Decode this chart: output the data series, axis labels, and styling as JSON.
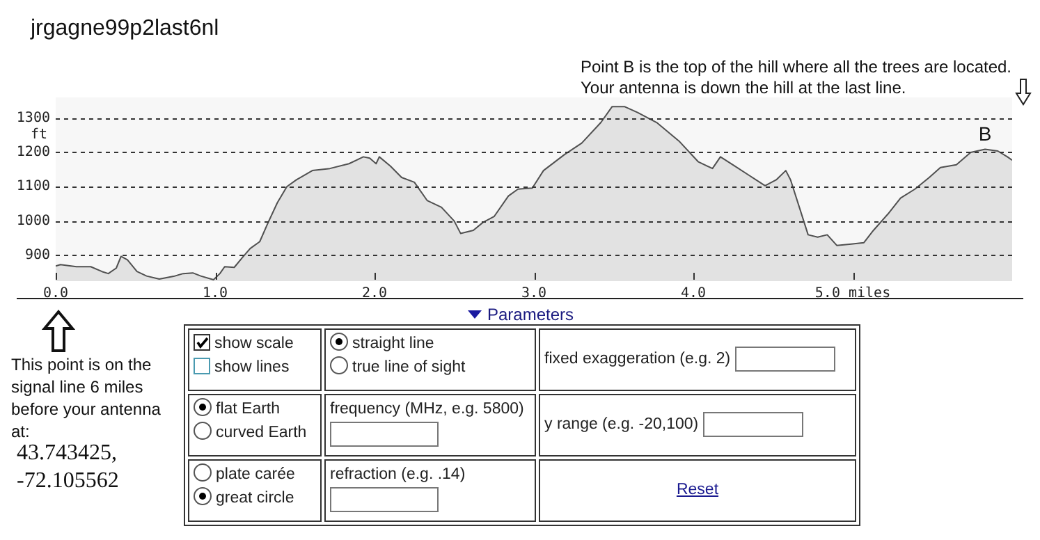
{
  "chart_data": {
    "type": "area",
    "title": "jrgagne99p2last6nl",
    "ylabel": "ft",
    "x": [
      0,
      0.03,
      0.13,
      0.22,
      0.29,
      0.33,
      0.38,
      0.41,
      0.45,
      0.51,
      0.57,
      0.65,
      0.74,
      0.8,
      0.86,
      0.91,
      0.99,
      1.03,
      1.06,
      1.12,
      1.17,
      1.22,
      1.28,
      1.33,
      1.39,
      1.45,
      1.51,
      1.61,
      1.72,
      1.84,
      1.93,
      1.97,
      2.01,
      2.03,
      2.1,
      2.17,
      2.25,
      2.33,
      2.42,
      2.5,
      2.54,
      2.62,
      2.68,
      2.75,
      2.84,
      2.9,
      2.99,
      3.06,
      3.19,
      3.3,
      3.42,
      3.49,
      3.57,
      3.65,
      3.77,
      3.91,
      4.03,
      4.12,
      4.17,
      4.26,
      4.35,
      4.45,
      4.52,
      4.58,
      4.61,
      4.67,
      4.72,
      4.78,
      4.84,
      4.9,
      4.99,
      5.07,
      5.13,
      5.22,
      5.3,
      5.39,
      5.48,
      5.55,
      5.65,
      5.74,
      5.83,
      5.91,
      5.97,
      6.0
    ],
    "series": [
      {
        "color": "#505050",
        "values": [
          869,
          873,
          867,
          867,
          853,
          847,
          863,
          897,
          887,
          853,
          840,
          831,
          839,
          847,
          849,
          840,
          829,
          847,
          867,
          865,
          893,
          920,
          940,
          993,
          1053,
          1100,
          1120,
          1147,
          1153,
          1167,
          1187,
          1183,
          1167,
          1187,
          1160,
          1127,
          1113,
          1060,
          1040,
          1000,
          964,
          973,
          996,
          1013,
          1073,
          1093,
          1096,
          1147,
          1193,
          1227,
          1287,
          1333,
          1333,
          1316,
          1287,
          1233,
          1173,
          1153,
          1187,
          1160,
          1133,
          1103,
          1120,
          1147,
          1120,
          1033,
          960,
          953,
          960,
          929,
          933,
          937,
          973,
          1020,
          1067,
          1093,
          1127,
          1156,
          1164,
          1200,
          1209,
          1204,
          1187,
          1177
        ]
      }
    ],
    "xlim": [
      0,
      6.0
    ],
    "xticks": [
      {
        "value": 0,
        "label": "0.0"
      },
      {
        "value": 1,
        "label": "1.0"
      },
      {
        "value": 2,
        "label": "2.0"
      },
      {
        "value": 3,
        "label": "3.0"
      },
      {
        "value": 4,
        "label": "4.0"
      },
      {
        "value": 5,
        "label": "5.0 miles"
      }
    ],
    "ylim": [
      825,
      1360
    ],
    "yticks": [
      900,
      1000,
      1100,
      1200,
      1300
    ],
    "grid": "y",
    "legend": false,
    "marker": "none",
    "annotations": [
      "Point B is the top of the hill where all the trees are located. Your antenna is down the hill at the last line.",
      "This point is on the signal line 6 miles before your antenna at:",
      "43.743425,",
      "-72.105562",
      "Parameters",
      "show scale",
      "show lines",
      "straight line",
      "true line of sight",
      "fixed exaggeration (e.g. 2)",
      "flat Earth",
      "curved Earth",
      "frequency (MHz, e.g. 5800)",
      "y range (e.g. -20,100)",
      "plate carée",
      "great circle",
      "refraction (e.g. .14)",
      "Reset",
      {
        "text": "B",
        "x": 5.83,
        "y": 1209
      }
    ]
  }
}
